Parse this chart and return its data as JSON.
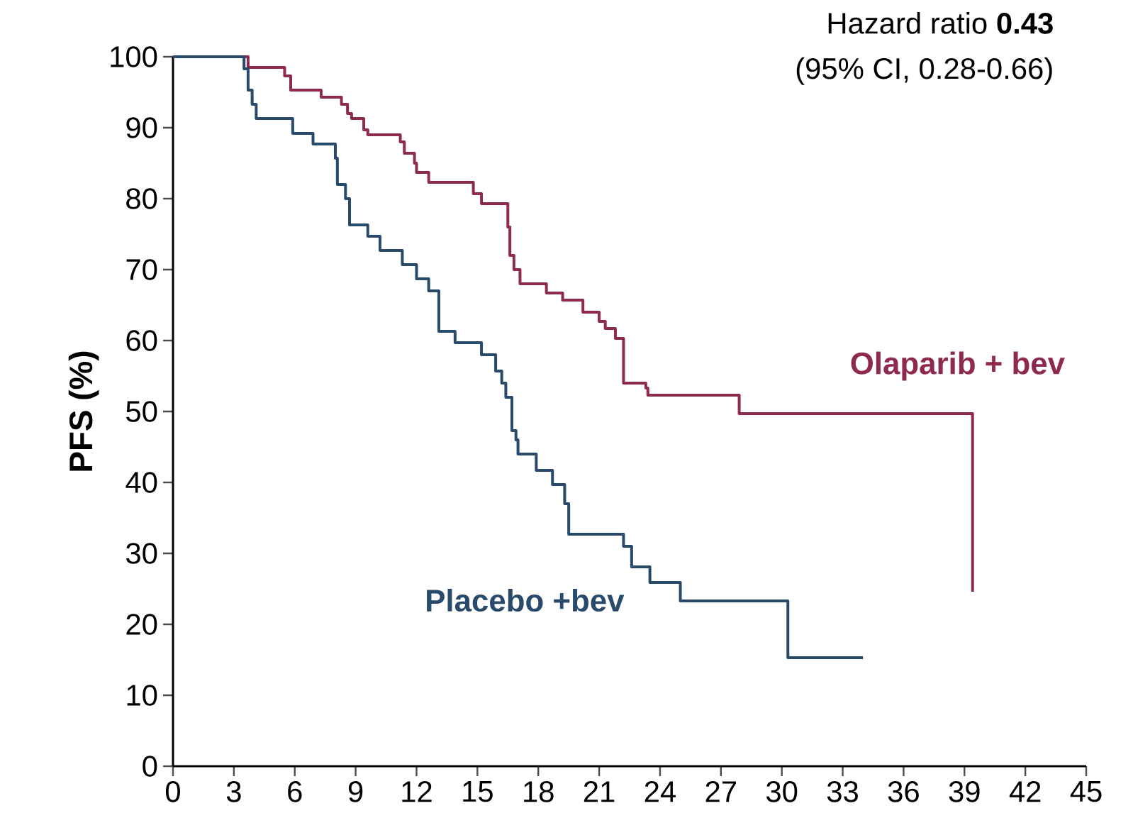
{
  "chart_data": {
    "type": "step",
    "ylabel": "PFS (%)",
    "annotations": [
      "Hazard ratio **0.43**",
      "(95% CI, 0.28-0.66)"
    ],
    "xlim": [
      0,
      45
    ],
    "ylim": [
      0,
      100
    ],
    "xticks": [
      0,
      3,
      6,
      9,
      12,
      15,
      18,
      21,
      24,
      27,
      30,
      33,
      36,
      39,
      42,
      45
    ],
    "yticks": [
      0,
      10,
      20,
      30,
      40,
      50,
      60,
      70,
      80,
      90,
      100
    ],
    "grid": false,
    "legend": false,
    "series": [
      {
        "name": "Olaparib + bev",
        "color": "#8e2a50",
        "x": [
          0,
          3.7,
          5.5,
          5.8,
          7.3,
          8.3,
          8.6,
          8.8,
          9.4,
          9.6,
          11.2,
          11.4,
          11.9,
          12.0,
          12.6,
          14.8,
          15.2,
          16.5,
          16.6,
          16.8,
          17.1,
          18.4,
          19.2,
          20.2,
          21.0,
          21.3,
          21.8,
          22.2,
          23.3,
          23.4,
          27.9,
          39.4,
          39.4
        ],
        "values": [
          100,
          98.5,
          97.3,
          95.3,
          94.3,
          93.3,
          92,
          91.3,
          89.7,
          89,
          88,
          86.4,
          85,
          83.7,
          82.3,
          80.7,
          79.3,
          76,
          72,
          70,
          68,
          66.7,
          65.7,
          64,
          62.7,
          61.7,
          60.3,
          54,
          53.3,
          52.3,
          49.7,
          24.6,
          24.6
        ]
      },
      {
        "name": "Placebo +bev",
        "color": "#2a4a6b",
        "x": [
          0,
          3.5,
          3.7,
          3.9,
          4.1,
          5.9,
          6.9,
          8.0,
          8.1,
          8.5,
          8.7,
          9.6,
          10.2,
          11.3,
          12.0,
          12.6,
          13.1,
          13.9,
          15.2,
          15.9,
          16.2,
          16.4,
          16.7,
          16.9,
          17.0,
          17.9,
          18.7,
          19.3,
          19.5,
          22.2,
          22.6,
          23.5,
          25.0,
          30.3,
          34.0
        ],
        "values": [
          100,
          98.3,
          95.3,
          93.3,
          91.3,
          89.2,
          87.7,
          85.7,
          82,
          80,
          76.3,
          74.7,
          72.7,
          70.7,
          68.7,
          67,
          61.3,
          59.7,
          58,
          55.7,
          54,
          52,
          47.3,
          46,
          44,
          41.7,
          39.7,
          37,
          32.7,
          31,
          28.1,
          25.9,
          23.3,
          15.3,
          15.3
        ]
      }
    ]
  }
}
